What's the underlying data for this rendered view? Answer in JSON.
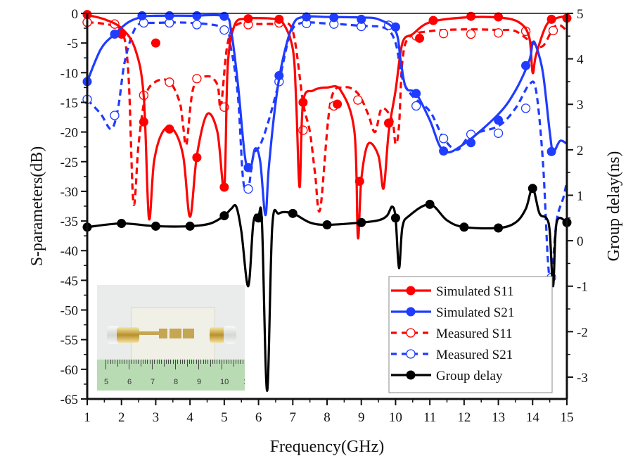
{
  "chart_data": {
    "type": "line",
    "title": "",
    "xlabel": "Frequency(GHz)",
    "ylabel": "S-parameters(dB)",
    "y2label": "Group delay(ns)",
    "xlim": [
      1,
      15
    ],
    "ylim": [
      -65,
      0
    ],
    "y2lim": [
      -3.48,
      5
    ],
    "x_ticks": [
      "1",
      "2",
      "3",
      "4",
      "5",
      "6",
      "7",
      "8",
      "9",
      "10",
      "11",
      "12",
      "13",
      "14",
      "15"
    ],
    "y_ticks": [
      "0",
      "-5",
      "-10",
      "-15",
      "-20",
      "-25",
      "-30",
      "-35",
      "-40",
      "-45",
      "-50",
      "-55",
      "-60",
      "-65"
    ],
    "y2_ticks": [
      "5",
      "4",
      "3",
      "2",
      "1",
      "0",
      "-1",
      "-2",
      "-3"
    ],
    "grid": false,
    "legend_position": "bottom-right",
    "series": [
      {
        "name": "Simulated S11",
        "axis": "left",
        "color": "#ff0000",
        "style": "solid",
        "marker": "filled-circle",
        "x": [
          1,
          1.5,
          2,
          2.4,
          2.65,
          2.8,
          2.95,
          3.2,
          3.5,
          3.8,
          4.0,
          4.2,
          4.5,
          4.8,
          5.0,
          5.1,
          5.3,
          5.6,
          6.0,
          6.4,
          6.7,
          7.0,
          7.1,
          7.2,
          7.3,
          7.6,
          8.0,
          8.4,
          8.8,
          8.9,
          9.0,
          9.2,
          9.5,
          9.65,
          9.8,
          10.0,
          10.2,
          10.5,
          11,
          12,
          13,
          13.6,
          13.9,
          14.0,
          14.1,
          14.4,
          14.7,
          15
        ],
        "y": [
          -0.3,
          -1.0,
          -2.5,
          -6,
          -14,
          -34.5,
          -25,
          -20,
          -19.5,
          -24,
          -34.3,
          -24,
          -17,
          -20,
          -29.3,
          -9,
          -2,
          -0.9,
          -0.8,
          -0.9,
          -1.5,
          -6,
          -15,
          -29.3,
          -15,
          -13,
          -12.5,
          -13,
          -20,
          -37.8,
          -28,
          -22,
          -24,
          -29.5,
          -20,
          -13,
          -5,
          -3.5,
          -1.5,
          -0.7,
          -0.7,
          -1.5,
          -4,
          -10,
          -7,
          -2,
          -0.8,
          -0.5
        ],
        "marker_x": [
          1.0,
          2.0,
          3.0,
          2.65,
          3.4,
          4.2,
          5.0,
          5.7,
          6.6,
          7.3,
          8.3,
          8.95,
          9.8,
          10.7,
          11.1,
          12.2,
          13.0,
          14.55,
          15
        ],
        "marker_y": [
          -0.2,
          -3.5,
          -5,
          -18.3,
          -19.5,
          -24.3,
          -29.3,
          -0.9,
          -1.0,
          -15,
          -15.3,
          -28.3,
          -18.5,
          -4.2,
          -1.2,
          -0.5,
          -0.6,
          -1.0,
          -0.8
        ]
      },
      {
        "name": "Simulated S21",
        "axis": "left",
        "color": "#1f3cff",
        "style": "solid",
        "marker": "filled-circle",
        "x": [
          1,
          1.4,
          1.8,
          2.2,
          2.6,
          3.0,
          4.0,
          5.0,
          5.2,
          5.4,
          5.6,
          5.75,
          5.9,
          6.05,
          6.2,
          6.3,
          6.5,
          6.7,
          7.0,
          7.3,
          8,
          9,
          9.5,
          10.0,
          10.15,
          10.3,
          10.6,
          11.0,
          11.4,
          12,
          13,
          13.5,
          13.9,
          14.0,
          14.1,
          14.3,
          14.5,
          14.6,
          14.8,
          15
        ],
        "y": [
          -11.5,
          -6,
          -3.5,
          -1.5,
          -0.6,
          -0.4,
          -0.4,
          -0.5,
          -3,
          -12,
          -24,
          -26.5,
          -22.8,
          -25,
          -34,
          -26,
          -15,
          -8,
          -2,
          -0.6,
          -0.6,
          -0.7,
          -1,
          -3,
          -8,
          -12.5,
          -13.5,
          -18,
          -23.2,
          -22,
          -17,
          -13,
          -8,
          -5,
          -5.5,
          -10,
          -20,
          -23.3,
          -21.5,
          -22
        ],
        "marker_x": [
          1.0,
          1.8,
          2.6,
          3.4,
          4.2,
          5.0,
          5.7,
          6.6,
          7.4,
          8.2,
          9.0,
          10.0,
          10.6,
          11.4,
          12.2,
          13.0,
          13.8,
          14.55
        ],
        "marker_y": [
          -11.5,
          -3.5,
          -0.4,
          -0.4,
          -0.4,
          -0.5,
          -26,
          -10.5,
          -0.6,
          -0.7,
          -1.0,
          -2.3,
          -13.5,
          -23.2,
          -21.8,
          -18,
          -8.8,
          -23.3
        ]
      },
      {
        "name": "Measured S11",
        "axis": "left",
        "color": "#ff0000",
        "style": "dashed",
        "marker": "open-circle",
        "x": [
          1,
          1.5,
          2,
          2.2,
          2.35,
          2.5,
          2.7,
          3.0,
          3.4,
          3.7,
          3.8,
          3.9,
          4.1,
          4.5,
          4.8,
          4.9,
          5.1,
          5.4,
          6,
          6.6,
          7.0,
          7.3,
          7.5,
          7.65,
          7.8,
          8.1,
          8.5,
          8.9,
          9.2,
          9.4,
          9.6,
          9.9,
          10.0,
          10.1,
          10.2,
          10.4,
          11,
          12,
          13,
          13.5,
          14,
          14.3,
          14.6,
          14.8,
          15
        ],
        "y": [
          -1.5,
          -1.8,
          -3,
          -10,
          -32,
          -22,
          -14,
          -11.5,
          -11.5,
          -15,
          -19,
          -22,
          -12.5,
          -10.6,
          -12,
          -15.8,
          -5,
          -1.8,
          -1.8,
          -1.9,
          -3,
          -15,
          -20,
          -27,
          -33,
          -15,
          -12.5,
          -13.5,
          -17,
          -20,
          -16,
          -18,
          -22,
          -19,
          -8,
          -4,
          -3,
          -2.7,
          -2.8,
          -3,
          -5,
          -5.5,
          -2.5,
          -2,
          -3
        ],
        "marker_x": [
          1.0,
          1.8,
          2.65,
          3.4,
          4.2,
          5.0,
          5.7,
          6.6,
          7.3,
          8.2,
          8.9,
          9.8,
          10.6,
          11.4,
          12.2,
          13.0,
          13.8,
          14.6
        ],
        "marker_y": [
          -1.5,
          -1.8,
          -13.8,
          -11.6,
          -11.0,
          -15.8,
          -1.9,
          -1.6,
          -19.7,
          -15.6,
          -14.6,
          -18.5,
          -3.8,
          -3.4,
          -3.5,
          -3.3,
          -3.0,
          -2.9
        ]
      },
      {
        "name": "Measured S21",
        "axis": "left",
        "color": "#1f3cff",
        "style": "dashed",
        "marker": "open-circle",
        "x": [
          1,
          1.4,
          1.7,
          1.9,
          2.1,
          2.4,
          2.7,
          3.0,
          4,
          5,
          5.2,
          5.4,
          5.55,
          5.7,
          5.85,
          6.05,
          6.3,
          6.6,
          6.9,
          7.2,
          8,
          9,
          9.7,
          10.0,
          10.2,
          10.5,
          11.0,
          11.4,
          11.8,
          12.2,
          13,
          13.5,
          13.9,
          14.1,
          14.3,
          14.45,
          14.55,
          14.7,
          14.9,
          15
        ],
        "y": [
          -14.5,
          -17,
          -19.5,
          -16,
          -8,
          -2.5,
          -1.7,
          -1.6,
          -1.6,
          -2.5,
          -6,
          -14,
          -28,
          -29.6,
          -24,
          -22.2,
          -18,
          -11.5,
          -4,
          -1.7,
          -1.7,
          -2.1,
          -2.5,
          -5,
          -11,
          -14,
          -16.5,
          -21,
          -23,
          -20.5,
          -19,
          -16,
          -12,
          -13,
          -25,
          -42,
          -44.5,
          -35,
          -31,
          -28.3
        ],
        "marker_x": [
          1.0,
          1.8,
          2.65,
          3.4,
          4.2,
          5.0,
          5.7,
          6.6,
          7.4,
          8.2,
          9.0,
          9.8,
          10.6,
          11.4,
          12.2,
          13.0,
          13.8,
          14.55
        ],
        "marker_y": [
          -14.5,
          -17.2,
          -1.6,
          -1.6,
          -1.9,
          -2.8,
          -29.6,
          -11.5,
          -1.7,
          -1.8,
          -2.2,
          -2.0,
          -15.6,
          -21.1,
          -20.4,
          -20.2,
          -16.0,
          -44.5
        ]
      },
      {
        "name": "Group delay",
        "axis": "right",
        "color": "#000000",
        "style": "solid",
        "marker": "filled-circle",
        "x": [
          1,
          2,
          3,
          4,
          4.6,
          5.0,
          5.2,
          5.35,
          5.5,
          5.7,
          5.85,
          6.0,
          6.1,
          6.25,
          6.4,
          6.6,
          7.0,
          7.5,
          8,
          9,
          9.5,
          9.75,
          9.9,
          10.0,
          10.1,
          10.2,
          10.4,
          11.0,
          11.5,
          12,
          13,
          13.5,
          13.8,
          14.0,
          14.2,
          14.4,
          14.5,
          14.6,
          14.7,
          15
        ],
        "y": [
          0.3,
          0.38,
          0.32,
          0.32,
          0.38,
          0.55,
          0.7,
          0.75,
          0.2,
          -1.0,
          0.4,
          0.55,
          0.4,
          -3.3,
          0.3,
          0.6,
          0.6,
          0.4,
          0.35,
          0.4,
          0.45,
          0.55,
          0.75,
          0.5,
          -0.6,
          0.3,
          0.55,
          0.8,
          0.45,
          0.3,
          0.28,
          0.4,
          0.7,
          1.15,
          0.6,
          0.5,
          0.2,
          -1.0,
          0.4,
          0.4
        ],
        "marker_x": [
          1,
          2,
          3,
          4,
          5,
          6,
          7,
          8,
          9,
          10,
          11,
          12,
          13,
          14,
          15
        ],
        "marker_y": [
          0.3,
          0.38,
          0.32,
          0.32,
          0.55,
          0.5,
          0.6,
          0.35,
          0.4,
          0.5,
          0.8,
          0.3,
          0.28,
          1.15,
          0.4
        ]
      }
    ]
  },
  "legend": {
    "items": [
      {
        "label": "Simulated S11"
      },
      {
        "label": "Simulated S21"
      },
      {
        "label": "Measured S11"
      },
      {
        "label": " Measured S21"
      },
      {
        "label": "Group delay"
      }
    ]
  },
  "inset": {
    "description": "photo of fabricated filter with SMA connectors on ruler",
    "ruler_numbers": [
      "5",
      "6",
      "7",
      "8",
      "9",
      "10",
      "1"
    ]
  }
}
